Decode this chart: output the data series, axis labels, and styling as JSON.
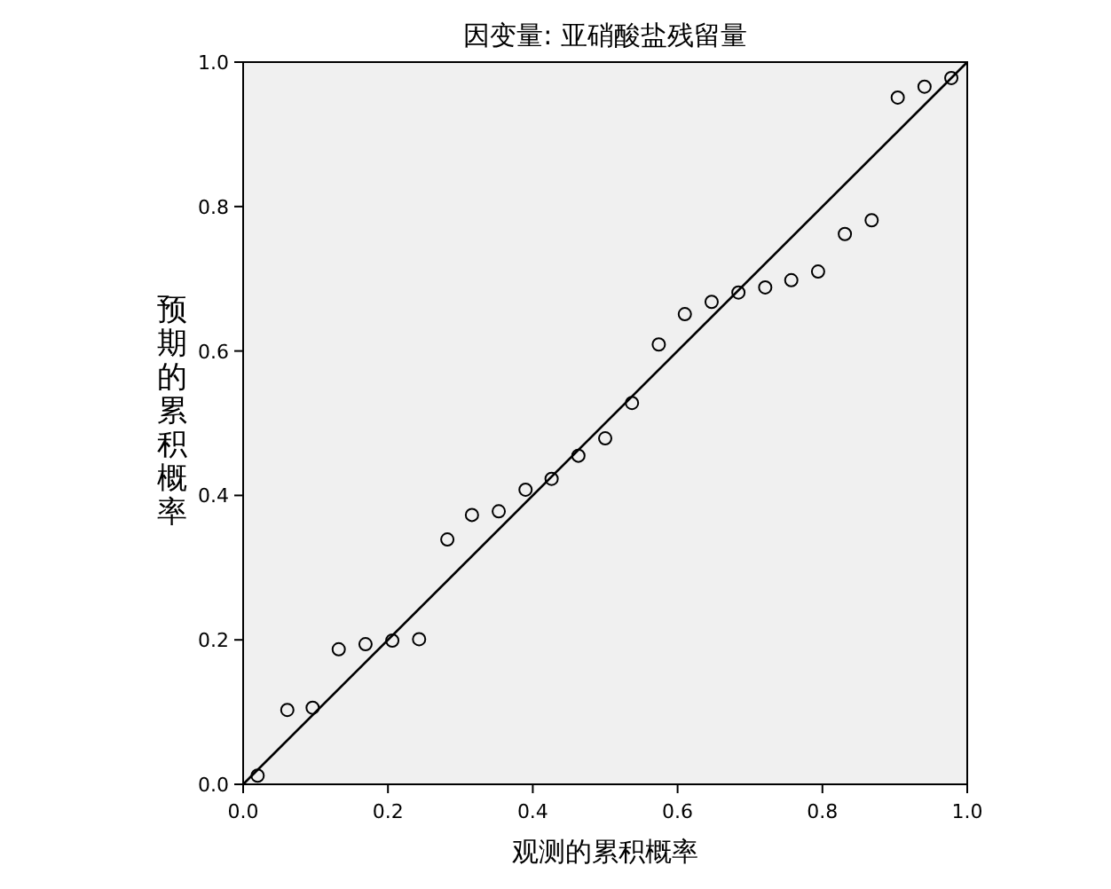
{
  "chart_data": {
    "type": "scatter",
    "title": "因变量: 亚硝酸盐残留量",
    "xlabel": "观测的累积概率",
    "ylabel": "预期的累积概率",
    "xlim": [
      0,
      1
    ],
    "ylim": [
      0,
      1
    ],
    "xticks": [
      {
        "value": 0,
        "label": "0.0"
      },
      {
        "value": 0.2,
        "label": "0.2"
      },
      {
        "value": 0.4,
        "label": "0.4"
      },
      {
        "value": 0.6,
        "label": "0.6"
      },
      {
        "value": 0.8,
        "label": "0.8"
      },
      {
        "value": 1,
        "label": "1.0"
      }
    ],
    "yticks": [
      {
        "value": 0,
        "label": "0.0"
      },
      {
        "value": 0.2,
        "label": "0.2"
      },
      {
        "value": 0.4,
        "label": "0.4"
      },
      {
        "value": 0.6,
        "label": "0.6"
      },
      {
        "value": 0.8,
        "label": "0.8"
      },
      {
        "value": 1,
        "label": "1.0"
      }
    ],
    "series": [
      {
        "type": "scatter",
        "marker": "circle",
        "color": "#000000",
        "x": [
          0.02,
          0.061,
          0.096,
          0.132,
          0.169,
          0.206,
          0.243,
          0.282,
          0.316,
          0.353,
          0.39,
          0.426,
          0.463,
          0.5,
          0.537,
          0.574,
          0.61,
          0.647,
          0.684,
          0.721,
          0.757,
          0.794,
          0.831,
          0.868,
          0.904,
          0.941,
          0.978
        ],
        "values": [
          0.012,
          0.103,
          0.106,
          0.187,
          0.194,
          0.199,
          0.201,
          0.339,
          0.373,
          0.378,
          0.408,
          0.423,
          0.455,
          0.479,
          0.528,
          0.609,
          0.651,
          0.668,
          0.681,
          0.688,
          0.698,
          0.71,
          0.762,
          0.781,
          0.951,
          0.966,
          0.978
        ]
      },
      {
        "type": "line",
        "marker": "none",
        "color": "#000000",
        "x": [
          0,
          1
        ],
        "values": [
          0,
          1
        ]
      }
    ]
  }
}
